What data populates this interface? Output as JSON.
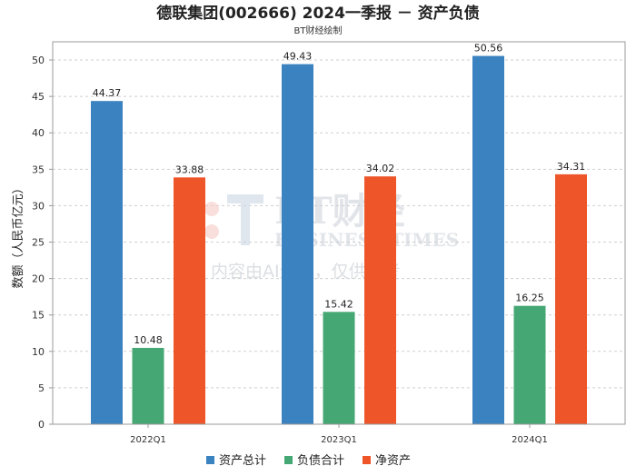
{
  "chart_data": {
    "type": "bar",
    "title": "德联集团(002666) 2024一季报 － 资产负债",
    "subtitle": "BT财经绘制",
    "ylabel": "数额（人民币亿元）",
    "xlabel": "",
    "categories": [
      "2022Q1",
      "2023Q1",
      "2024Q1"
    ],
    "series": [
      {
        "name": "资产总计",
        "color": "#3a82c0",
        "values": [
          44.37,
          49.43,
          50.56
        ]
      },
      {
        "name": "负债合计",
        "color": "#45a774",
        "values": [
          10.48,
          15.42,
          16.25
        ]
      },
      {
        "name": "净资产",
        "color": "#ee5528",
        "values": [
          33.88,
          34.02,
          34.31
        ]
      }
    ],
    "ylim": [
      0,
      52.5
    ],
    "yticks": [
      0,
      5,
      10,
      15,
      20,
      25,
      30,
      35,
      40,
      45,
      50
    ],
    "grid": true,
    "legend_position": "bottom-center"
  },
  "watermark": {
    "brand": "BT财经",
    "brand_en": "BUSINESS TIMES",
    "note": "内容由AI生成，仅供参考"
  }
}
